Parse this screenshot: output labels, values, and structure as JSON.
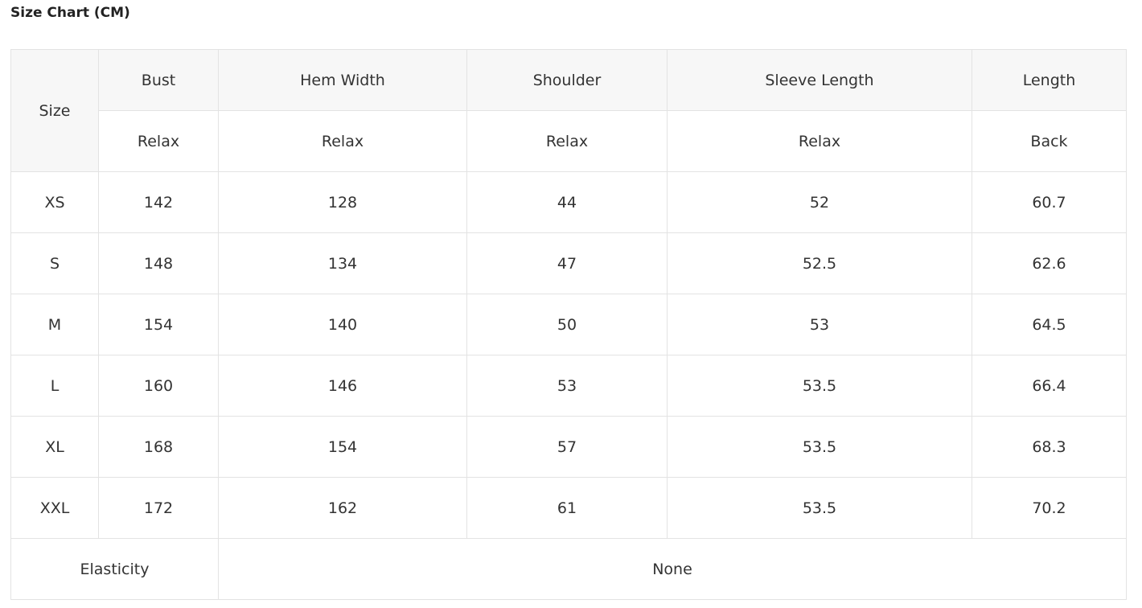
{
  "title": "Size Chart (CM)",
  "header": {
    "size": "Size",
    "columns": [
      {
        "name": "Bust",
        "sub": "Relax"
      },
      {
        "name": "Hem Width",
        "sub": "Relax"
      },
      {
        "name": "Shoulder",
        "sub": "Relax"
      },
      {
        "name": "Sleeve Length",
        "sub": "Relax"
      },
      {
        "name": "Length",
        "sub": "Back"
      }
    ]
  },
  "rows": [
    [
      "XS",
      "142",
      "128",
      "44",
      "52",
      "60.7"
    ],
    [
      "S",
      "148",
      "134",
      "47",
      "52.5",
      "62.6"
    ],
    [
      "M",
      "154",
      "140",
      "50",
      "53",
      "64.5"
    ],
    [
      "L",
      "160",
      "146",
      "53",
      "53.5",
      "66.4"
    ],
    [
      "XL",
      "168",
      "154",
      "57",
      "53.5",
      "68.3"
    ],
    [
      "XXL",
      "172",
      "162",
      "61",
      "53.5",
      "70.2"
    ]
  ],
  "elasticity": {
    "label": "Elasticity",
    "value": "None"
  }
}
